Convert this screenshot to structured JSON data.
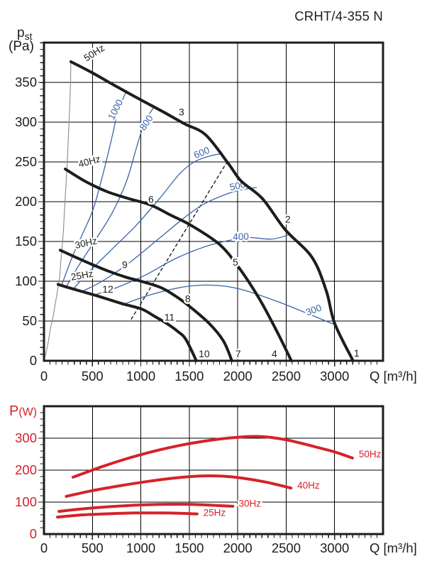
{
  "title": "CRHT/4-355 N",
  "colors": {
    "curve_black": "#1d1d1b",
    "curve_blue": "#3a64a8",
    "curve_red": "#d5222a",
    "grid": "#000000",
    "boundary_gray": "#8a8a8a",
    "background": "#ffffff"
  },
  "chart_data": [
    {
      "id": "pressure-chart",
      "type": "line",
      "ylabel": {
        "main": "p",
        "sub": "st",
        "unit": "(Pa)"
      },
      "xlabel": "Q [m³/h]",
      "xlim": [
        0,
        3500
      ],
      "ylim": [
        0,
        400
      ],
      "xticks": [
        0,
        500,
        1000,
        1500,
        2000,
        2500,
        3000
      ],
      "yticks": [
        0,
        50,
        100,
        150,
        200,
        250,
        300,
        350
      ],
      "x_minor_step": 62.5,
      "y_minor_step": 8.33,
      "grid": true,
      "series_color": "#1d1d1b",
      "tick_color": "#1d1d1b",
      "series": [
        {
          "name": "50Hz",
          "label": {
            "q": 439,
            "p": 376,
            "rot": -33
          },
          "points": [
            [
              278,
              376
            ],
            [
              500,
              362
            ],
            [
              717,
              347
            ],
            [
              1000,
              328
            ],
            [
              1230,
              313
            ],
            [
              1450,
              298
            ],
            [
              1669,
              284
            ],
            [
              1903,
              248
            ],
            [
              2035,
              226
            ],
            [
              2254,
              204
            ],
            [
              2489,
              165
            ],
            [
              2767,
              130
            ],
            [
              2914,
              88
            ],
            [
              3001,
              47
            ],
            [
              3191,
              0
            ]
          ]
        },
        {
          "name": "40Hz",
          "label": {
            "q": 366,
            "p": 243,
            "rot": -15
          },
          "points": [
            [
              220,
              241
            ],
            [
              420,
              226
            ],
            [
              644,
              213
            ],
            [
              870,
              204
            ],
            [
              1098,
              196
            ],
            [
              1310,
              183
            ],
            [
              1522,
              170
            ],
            [
              1815,
              146
            ],
            [
              2013,
              117
            ],
            [
              2218,
              79
            ],
            [
              2400,
              38
            ],
            [
              2554,
              0
            ]
          ]
        },
        {
          "name": "30Hz",
          "label": {
            "q": 329,
            "p": 141,
            "rot": -13
          },
          "points": [
            [
              168,
              139
            ],
            [
              330,
              130
            ],
            [
              498,
              121
            ],
            [
              680,
              112
            ],
            [
              849,
              105
            ],
            [
              1030,
              99
            ],
            [
              1207,
              92
            ],
            [
              1350,
              82
            ],
            [
              1486,
              70
            ],
            [
              1705,
              47
            ],
            [
              1852,
              25
            ],
            [
              1940,
              0
            ]
          ]
        },
        {
          "name": "25Hz",
          "label": {
            "q": 285,
            "p": 101,
            "rot": -10
          },
          "points": [
            [
              146,
              96
            ],
            [
              280,
              91
            ],
            [
              424,
              86
            ],
            [
              540,
              82
            ],
            [
              644,
              78
            ],
            [
              830,
              71
            ],
            [
              1010,
              65
            ],
            [
              1140,
              56
            ],
            [
              1266,
              47
            ],
            [
              1380,
              37
            ],
            [
              1464,
              27
            ],
            [
              1573,
              0
            ]
          ]
        }
      ],
      "iso_curves": [
        {
          "name": "1000",
          "label": {
            "q": 768,
            "p": 314,
            "rot": -63
          },
          "points": [
            [
              176,
              93
            ],
            [
              290,
              130
            ],
            [
              400,
              160
            ],
            [
              512,
              192
            ],
            [
              620,
              240
            ],
            [
              700,
              280
            ],
            [
              768,
              315
            ],
            [
              855,
              340
            ]
          ]
        },
        {
          "name": "800",
          "label": {
            "q": 1083,
            "p": 297,
            "rot": -55
          },
          "points": [
            [
              220,
              91
            ],
            [
              360,
              120
            ],
            [
              520,
              150
            ],
            [
              700,
              185
            ],
            [
              850,
              225
            ],
            [
              960,
              270
            ],
            [
              1040,
              300
            ],
            [
              1130,
              318
            ]
          ]
        },
        {
          "name": "600",
          "label": {
            "q": 1640,
            "p": 258,
            "rot": -22
          },
          "points": [
            [
              293,
              89
            ],
            [
              450,
              110
            ],
            [
              700,
              140
            ],
            [
              950,
              170
            ],
            [
              1200,
              205
            ],
            [
              1400,
              235
            ],
            [
              1550,
              250
            ],
            [
              1700,
              257
            ],
            [
              1845,
              261
            ]
          ]
        },
        {
          "name": "500",
          "label": {
            "q": 2006,
            "p": 216,
            "rot": -12
          },
          "points": [
            [
              388,
              87
            ],
            [
              600,
              100
            ],
            [
              900,
              125
            ],
            [
              1200,
              155
            ],
            [
              1450,
              180
            ],
            [
              1650,
              197
            ],
            [
              1850,
              208
            ],
            [
              2000,
              214
            ],
            [
              2196,
              218
            ]
          ]
        },
        {
          "name": "400",
          "label": {
            "q": 2034,
            "p": 152,
            "rot": -2
          },
          "points": [
            [
              527,
              83
            ],
            [
              750,
              92
            ],
            [
              1050,
              108
            ],
            [
              1350,
              128
            ],
            [
              1650,
              143
            ],
            [
              1900,
              151
            ],
            [
              2100,
              155
            ],
            [
              2350,
              153
            ],
            [
              2520,
              158
            ]
          ]
        },
        {
          "name": "300",
          "label": {
            "q": 2795,
            "p": 60,
            "rot": -20
          },
          "points": [
            [
              800,
              70
            ],
            [
              1100,
              83
            ],
            [
              1450,
              93
            ],
            [
              1750,
              95
            ],
            [
              2030,
              90
            ],
            [
              2400,
              75
            ],
            [
              2790,
              56
            ],
            [
              3010,
              45
            ]
          ]
        }
      ],
      "boundary_curve": {
        "points": [
          [
            0,
            0
          ],
          [
            37,
            19
          ],
          [
            66,
            40
          ],
          [
            95,
            56
          ],
          [
            117,
            72
          ],
          [
            139,
            88
          ],
          [
            161,
            105
          ],
          [
            176,
            128
          ],
          [
            198,
            159
          ],
          [
            212,
            190
          ],
          [
            227,
            221
          ],
          [
            242,
            253
          ],
          [
            256,
            293
          ],
          [
            271,
            337
          ],
          [
            278,
            376
          ]
        ]
      },
      "dashed_line": {
        "from": [
          900,
          52
        ],
        "to": [
          1900,
          252
        ]
      },
      "point_markers": [
        {
          "label": "1",
          "q": 3227,
          "p": 10
        },
        {
          "label": "2",
          "q": 2517,
          "p": 178
        },
        {
          "label": "3",
          "q": 1420,
          "p": 313
        },
        {
          "label": "4",
          "q": 2379,
          "p": 9
        },
        {
          "label": "5",
          "q": 1976,
          "p": 124
        },
        {
          "label": "6",
          "q": 1105,
          "p": 203
        },
        {
          "label": "7",
          "q": 2005,
          "p": 9
        },
        {
          "label": "8",
          "q": 1485,
          "p": 78
        },
        {
          "label": "9",
          "q": 834,
          "p": 121
        },
        {
          "label": "10",
          "q": 1654,
          "p": 9
        },
        {
          "label": "11",
          "q": 1295,
          "p": 55
        },
        {
          "label": "12",
          "q": 659,
          "p": 90
        }
      ]
    },
    {
      "id": "power-chart",
      "type": "line",
      "ylabel": {
        "main": "P",
        "sub": "",
        "unit": "(W)"
      },
      "xlabel": "Q [m³/h]",
      "xlim": [
        0,
        3500
      ],
      "ylim": [
        0,
        400
      ],
      "xticks": [
        0,
        500,
        1000,
        1500,
        2000,
        2500,
        3000
      ],
      "yticks": [
        0,
        100,
        200,
        300
      ],
      "x_minor_step": 62.5,
      "y_minor_step": 20,
      "grid": true,
      "series_color": "#d5222a",
      "tick_color": "#d5222a",
      "series": [
        {
          "name": "50Hz",
          "label": {
            "q": 3250,
            "p": 240,
            "rot": 0
          },
          "points": [
            [
              300,
              178
            ],
            [
              600,
              211
            ],
            [
              900,
              240
            ],
            [
              1200,
              264
            ],
            [
              1500,
              283
            ],
            [
              1800,
              297
            ],
            [
              2050,
              304
            ],
            [
              2250,
              305
            ],
            [
              2500,
              295
            ],
            [
              2800,
              273
            ],
            [
              3000,
              257
            ],
            [
              3185,
              238
            ]
          ]
        },
        {
          "name": "40Hz",
          "label": {
            "q": 2615,
            "p": 142,
            "rot": 0
          },
          "points": [
            [
              230,
              118
            ],
            [
              500,
              136
            ],
            [
              800,
              152
            ],
            [
              1100,
              166
            ],
            [
              1400,
              177
            ],
            [
              1650,
              182
            ],
            [
              1850,
              181
            ],
            [
              2050,
              175
            ],
            [
              2300,
              162
            ],
            [
              2550,
              144
            ]
          ]
        },
        {
          "name": "30Hz",
          "label": {
            "q": 2010,
            "p": 86,
            "rot": 0
          },
          "points": [
            [
              155,
              71
            ],
            [
              400,
              79
            ],
            [
              700,
              86
            ],
            [
              1000,
              91
            ],
            [
              1250,
              93
            ],
            [
              1500,
              93
            ],
            [
              1750,
              90
            ],
            [
              1950,
              87
            ]
          ]
        },
        {
          "name": "25Hz",
          "label": {
            "q": 1645,
            "p": 57,
            "rot": 0
          },
          "points": [
            [
              140,
              53
            ],
            [
              400,
              60
            ],
            [
              700,
              64
            ],
            [
              950,
              66
            ],
            [
              1200,
              66
            ],
            [
              1400,
              65
            ],
            [
              1580,
              63
            ]
          ]
        }
      ]
    }
  ]
}
